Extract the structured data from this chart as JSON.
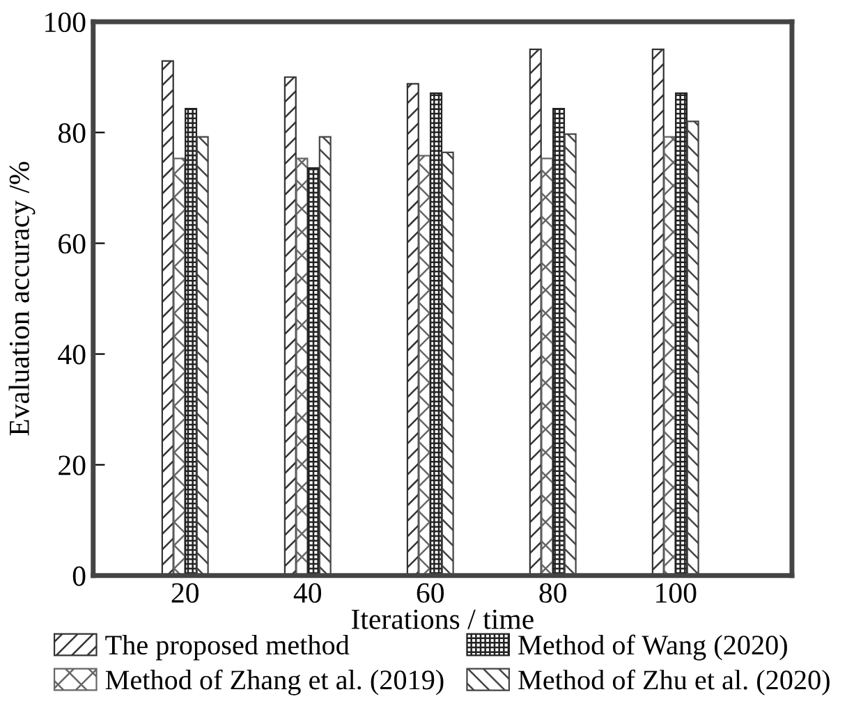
{
  "chart_data": {
    "type": "bar",
    "xlabel": "Iterations / time",
    "ylabel": "Evaluation accuracy /%",
    "categories": [
      "20",
      "40",
      "60",
      "80",
      "100"
    ],
    "series": [
      {
        "name": "The proposed method",
        "color": "#333333",
        "values": [
          92.9,
          90.0,
          88.8,
          95.0,
          95.0
        ]
      },
      {
        "name": "Method of Zhang et al. (2019)",
        "color": "#666666",
        "values": [
          75.3,
          75.3,
          75.8,
          75.3,
          79.2
        ]
      },
      {
        "name": "Method of Wang (2020)",
        "color": "#222222",
        "values": [
          84.3,
          73.6,
          87.1,
          84.3,
          87.1
        ]
      },
      {
        "name": "Method of Zhu et al. (2020)",
        "color": "#444444",
        "values": [
          79.2,
          79.2,
          76.4,
          79.7,
          82.0
        ]
      }
    ],
    "ylim": [
      0,
      100
    ],
    "yticks": [
      0,
      20,
      40,
      60,
      80,
      100
    ],
    "grid": false,
    "legend": "bottom"
  }
}
